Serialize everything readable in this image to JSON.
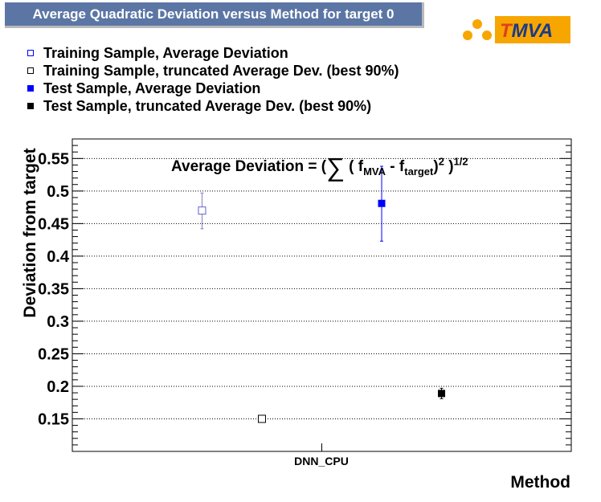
{
  "title": "Average Quadratic Deviation versus Method for target 0",
  "logo": {
    "text": "TMVA",
    "accent": "#e0401c",
    "background": "#f7a600"
  },
  "legend": [
    {
      "label": "Training Sample, Average Deviation",
      "marker": "open-square",
      "color": "#0000ff"
    },
    {
      "label": "Training Sample, truncated Average Dev. (best 90%)",
      "marker": "open-square",
      "color": "#000000"
    },
    {
      "label": "Test Sample, Average Deviation",
      "marker": "filled-square",
      "color": "#0000ff"
    },
    {
      "label": "Test Sample, truncated Average Dev. (best 90%)",
      "marker": "filled-square",
      "color": "#000000"
    }
  ],
  "formula": {
    "prefix": "Average Deviation = (",
    "sum": "∑",
    "open": " ( f",
    "sub1": "MVA",
    "mid": " - f",
    "sub2": "target",
    "close": ")",
    "sup1": "2",
    "end": " )",
    "sup2": "1/2"
  },
  "chart_data": {
    "type": "scatter",
    "title": "Average Quadratic Deviation versus Method for target 0",
    "xlabel": "Method",
    "ylabel": "Deviation from target",
    "categories": [
      "DNN_CPU"
    ],
    "ylim": [
      0.1,
      0.58
    ],
    "yticks": [
      0.15,
      0.2,
      0.25,
      0.3,
      0.35,
      0.4,
      0.45,
      0.5,
      0.55
    ],
    "ytick_labels": [
      "0.15",
      "0.2",
      "0.25",
      "0.3",
      "0.35",
      "0.4",
      "0.45",
      "0.5",
      "0.55"
    ],
    "grid": "horizontal",
    "series": [
      {
        "name": "Training Sample, Average Deviation",
        "marker": "open-square",
        "color": "#0000ff",
        "x_offset": -0.25,
        "values": [
          0.47
        ],
        "err_low": [
          0.442
        ],
        "err_high": [
          0.497
        ]
      },
      {
        "name": "Training Sample, truncated Average Dev. (best 90%)",
        "marker": "open-square",
        "color": "#000000",
        "x_offset": -0.125,
        "values": [
          0.15
        ],
        "err_low": [
          0.148
        ],
        "err_high": [
          0.152
        ]
      },
      {
        "name": "Test Sample, Average Deviation",
        "marker": "filled-square",
        "color": "#0000ff",
        "x_offset": 0.125,
        "values": [
          0.481
        ],
        "err_low": [
          0.423
        ],
        "err_high": [
          0.538
        ]
      },
      {
        "name": "Test Sample, truncated Average Dev. (best 90%)",
        "marker": "filled-square",
        "color": "#000000",
        "x_offset": 0.25,
        "values": [
          0.189
        ],
        "err_low": [
          0.181
        ],
        "err_high": [
          0.197
        ]
      }
    ]
  }
}
